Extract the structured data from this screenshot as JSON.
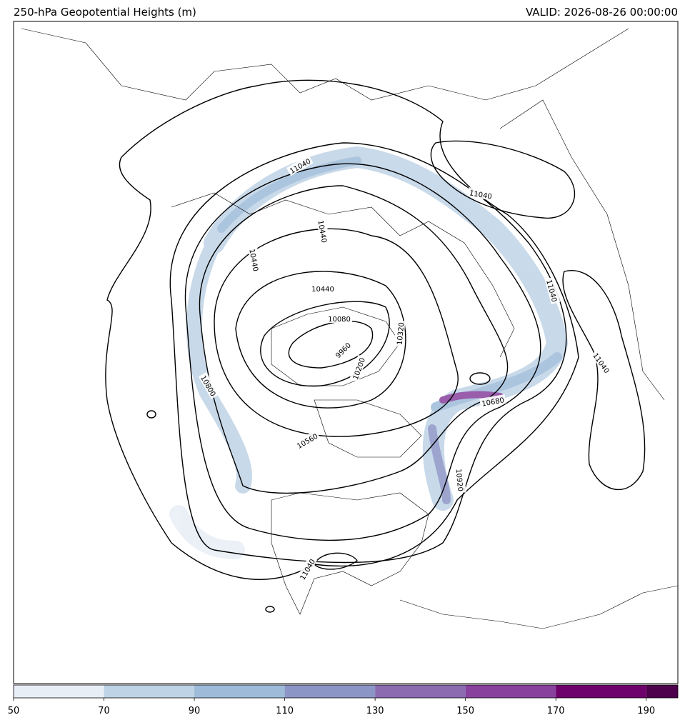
{
  "map": {
    "title": "250-hPa Geopotential Heights (m)",
    "valid": "VALID: 2026-08-26 00:00:00",
    "contour_labels": [
      "11040",
      "11040",
      "11040",
      "11040",
      "10440",
      "10440",
      "10440",
      "10080",
      "9960",
      "10320",
      "10200",
      "10680",
      "10920",
      "10560",
      "10800",
      "11040"
    ],
    "colorbar": {
      "lim": [
        50,
        197
      ],
      "levels": [
        50,
        70,
        90,
        110,
        130,
        150,
        170,
        190
      ],
      "colors": [
        "#e8eef6",
        "#bfd3e6",
        "#9ebcda",
        "#8c96c6",
        "#8c6bb1",
        "#88419d",
        "#6e016b",
        "#4d004b"
      ],
      "ticks": [
        50,
        70,
        90,
        110,
        130,
        150,
        170,
        190
      ]
    }
  }
}
